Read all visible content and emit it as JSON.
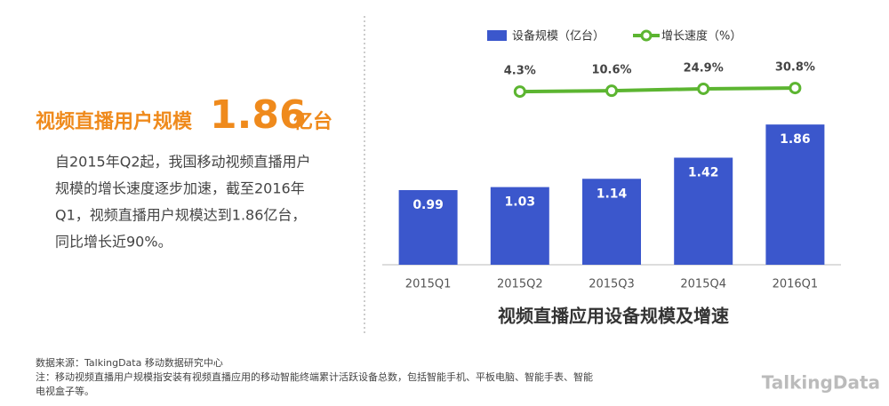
{
  "headline": {
    "label": "视频直播用户规模",
    "number": "1.86",
    "unit": "亿台"
  },
  "description": [
    "自2015年Q2起，我国移动视频直播用户",
    "规模的增长速度逐步加速，截至2016年",
    "Q1，视频直播用户规模达到1.86亿台，",
    "同比增长近90%。"
  ],
  "footer": [
    "数据来源：TalkingData 移动数据研究中心",
    "注：移动视频直播用户规模指安装有视频直播应用的移动智能终端累计活跃设备总数，包括智能手机、平板电脑、智能手表、智能",
    "电视盒子等。"
  ],
  "logo": "TalkingData",
  "chart_data": {
    "type": "bar-line",
    "title": "视频直播应用设备规模及增速",
    "categories": [
      "2015Q1",
      "2015Q2",
      "2015Q3",
      "2015Q4",
      "2016Q1"
    ],
    "series": [
      {
        "name": "设备规模（亿台）",
        "type": "bar",
        "color": "#3b57cc",
        "values": [
          0.99,
          1.03,
          1.14,
          1.42,
          1.86
        ]
      },
      {
        "name": "增长速度（%）",
        "type": "line",
        "axis": "y2",
        "color": "#5cb531",
        "values": [
          null,
          4.3,
          10.6,
          24.9,
          30.8
        ],
        "value_labels": [
          null,
          "4.3%",
          "10.6%",
          "24.9%",
          "30.8%"
        ]
      }
    ],
    "ylim": [
      0,
      3.04
    ],
    "y2lim": [
      -1280,
      420
    ],
    "legend": "top"
  }
}
